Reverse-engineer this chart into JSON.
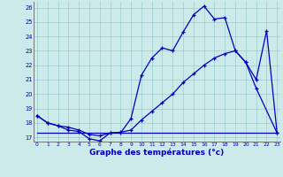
{
  "xlabel": "Graphe des températures (°c)",
  "xlim": [
    -0.3,
    23.3
  ],
  "ylim": [
    16.7,
    26.4
  ],
  "yticks": [
    17,
    18,
    19,
    20,
    21,
    22,
    23,
    24,
    25,
    26
  ],
  "xticks": [
    0,
    1,
    2,
    3,
    4,
    5,
    6,
    7,
    8,
    9,
    10,
    11,
    12,
    13,
    14,
    15,
    16,
    17,
    18,
    19,
    20,
    21,
    22,
    23
  ],
  "bg_color": "#cceaea",
  "grid_color": "#99cccc",
  "line_color": "#0000bb",
  "line1_x": [
    0,
    1,
    2,
    3,
    4,
    5,
    6,
    7,
    8,
    9,
    10,
    11,
    12,
    13,
    14,
    15,
    16,
    17,
    18,
    19,
    20,
    21,
    23
  ],
  "line1_y": [
    18.5,
    18.0,
    17.8,
    17.5,
    17.4,
    16.9,
    16.75,
    17.3,
    17.3,
    18.3,
    21.3,
    22.5,
    23.2,
    23.0,
    24.3,
    25.5,
    26.1,
    25.2,
    25.3,
    23.0,
    22.2,
    20.4,
    17.3
  ],
  "line2_x": [
    0,
    1,
    2,
    3,
    4,
    5,
    6,
    7,
    8,
    9,
    10,
    11,
    12,
    13,
    14,
    15,
    16,
    17,
    18,
    19,
    20,
    21,
    22,
    23
  ],
  "line2_y": [
    18.5,
    18.0,
    17.8,
    17.7,
    17.5,
    17.2,
    17.1,
    17.3,
    17.35,
    17.5,
    18.2,
    18.8,
    19.4,
    20.0,
    20.8,
    21.4,
    22.0,
    22.5,
    22.8,
    23.0,
    22.2,
    21.0,
    24.4,
    17.3
  ],
  "line3_x": [
    0,
    1,
    2,
    3,
    4,
    5,
    6,
    7,
    8,
    9,
    10,
    11,
    12,
    13,
    14,
    15,
    16,
    17,
    18,
    19,
    20,
    21,
    23
  ],
  "line3_y": [
    17.3,
    17.3,
    17.3,
    17.3,
    17.3,
    17.3,
    17.3,
    17.3,
    17.3,
    17.3,
    17.3,
    17.3,
    17.3,
    17.3,
    17.3,
    17.3,
    17.3,
    17.3,
    17.3,
    17.3,
    17.3,
    17.3,
    17.3
  ]
}
